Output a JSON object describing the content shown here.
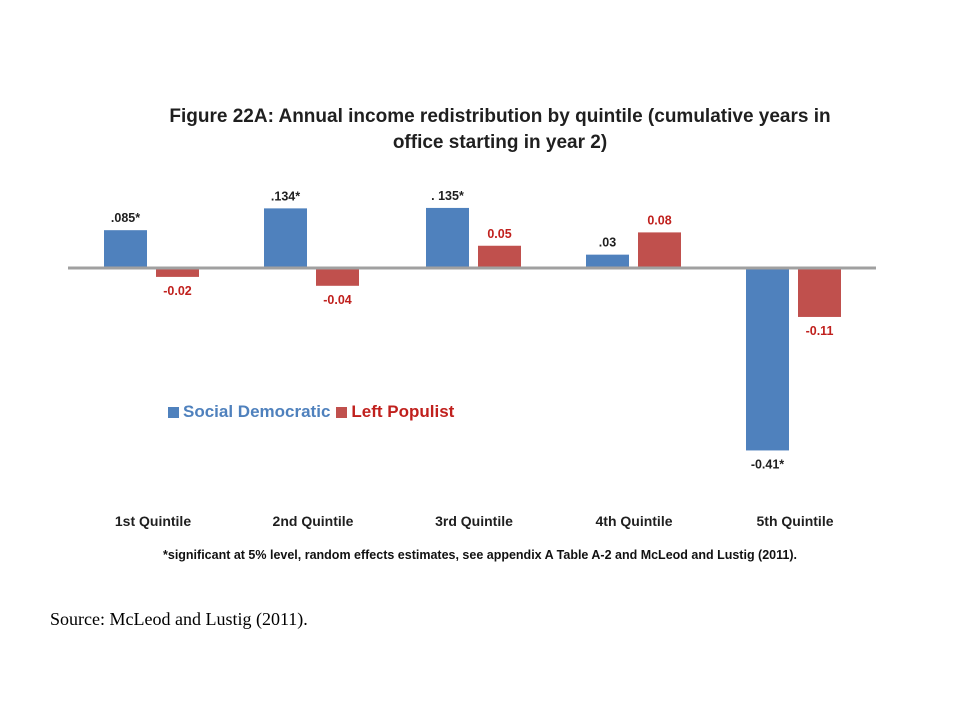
{
  "chart_data": {
    "type": "bar",
    "title": "Figure 22A: Annual income redistribution by quintile (cumulative years in office starting in year 2)",
    "categories": [
      "1st Quintile",
      "2nd Quintile",
      "3rd Quintile",
      "4th Quintile",
      "5th Quintile"
    ],
    "series": [
      {
        "name": "Social Democratic",
        "color": "#4f81bd",
        "label_color": "#1f1f1f",
        "values": [
          0.085,
          0.134,
          0.135,
          0.03,
          -0.41
        ],
        "labels": [
          ".085*",
          ".134*",
          ". 135*",
          ".03",
          "-0.41*"
        ]
      },
      {
        "name": "Left Populist",
        "color": "#c0504d",
        "label_color": "#c0201d",
        "values": [
          -0.02,
          -0.04,
          0.05,
          0.08,
          -0.11
        ],
        "labels": [
          "-0.02",
          "-0.04",
          "0.05",
          "0.08",
          "-0.11"
        ]
      }
    ],
    "legend_position": "middle-left",
    "grid": false
  },
  "title_lines": [
    "Figure 22A: Annual income redistribution by quintile (cumulative years in",
    "office starting in year 2)"
  ],
  "footnote": "*significant at 5% level, random effects estimates, see appendix A Table A-2 and McLeod and Lustig (2011).",
  "source": "Source: McLeod and Lustig (2011)."
}
